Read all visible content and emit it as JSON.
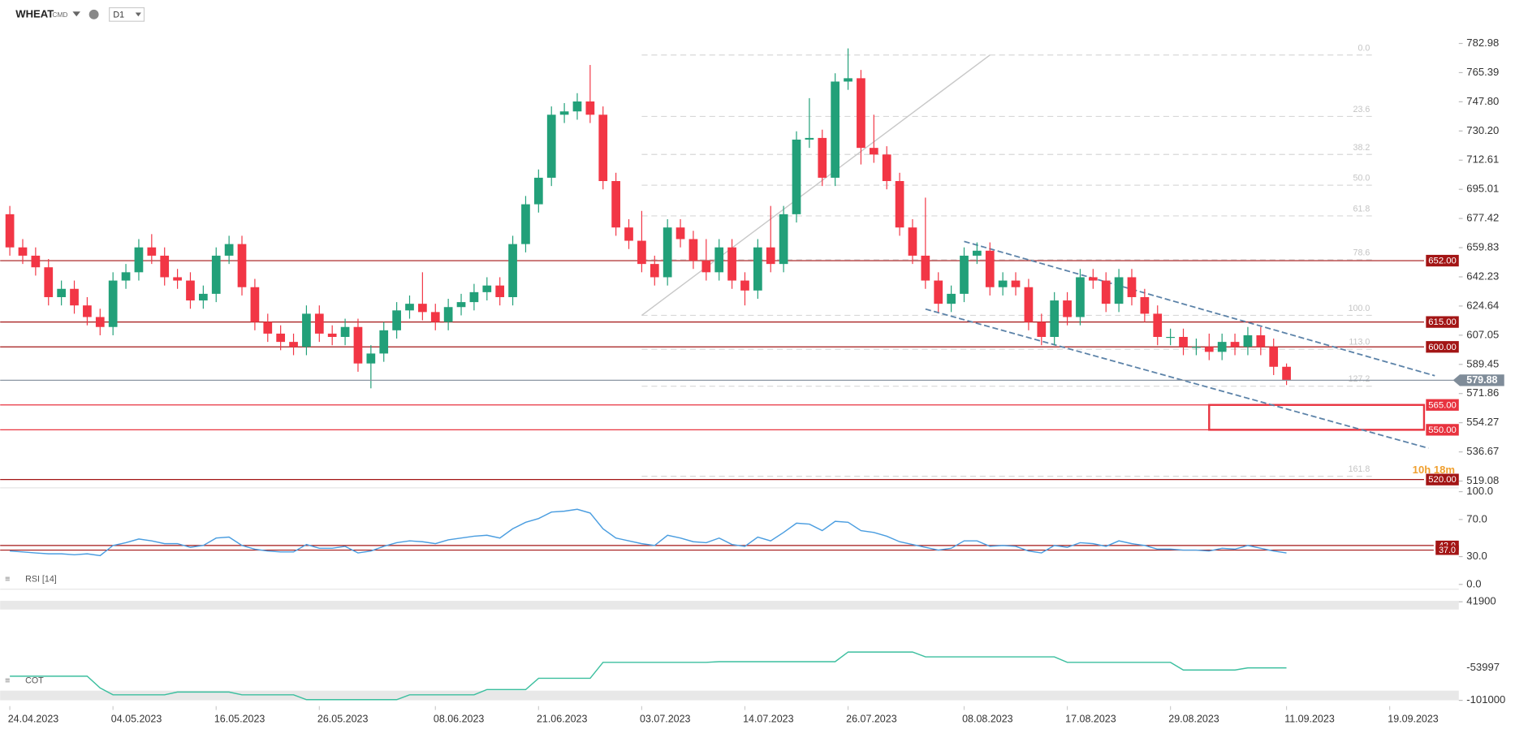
{
  "chart_data": {
    "type": "candlestick",
    "symbol": "WHEAT",
    "symbol_type": "CMD",
    "timeframe": "D1",
    "countdown": "10h 18m",
    "up_color": "#22a079",
    "down_color": "#f23645",
    "xticks": [
      {
        "value": 0,
        "label": "24.04.2023"
      },
      {
        "value": 8,
        "label": "04.05.2023"
      },
      {
        "value": 16,
        "label": "16.05.2023"
      },
      {
        "value": 24,
        "label": "26.05.2023"
      },
      {
        "value": 33,
        "label": "08.06.2023"
      },
      {
        "value": 41,
        "label": "21.06.2023"
      },
      {
        "value": 49,
        "label": "03.07.2023"
      },
      {
        "value": 57,
        "label": "14.07.2023"
      },
      {
        "value": 65,
        "label": "26.07.2023"
      },
      {
        "value": 74,
        "label": "08.08.2023"
      },
      {
        "value": 82,
        "label": "17.08.2023"
      },
      {
        "value": 90,
        "label": "29.08.2023"
      },
      {
        "value": 99,
        "label": "11.09.2023"
      },
      {
        "value": 107,
        "label": "19.09.2023"
      }
    ],
    "open": [
      680,
      660,
      655,
      648,
      630,
      635,
      625,
      618,
      612,
      640,
      645,
      660,
      655,
      642,
      640,
      628,
      632,
      655,
      662,
      636,
      615,
      608,
      603,
      600,
      620,
      608,
      606,
      612,
      590,
      596,
      610,
      622,
      626,
      621,
      615,
      624,
      627,
      633,
      637,
      630,
      662,
      686,
      702,
      740,
      742,
      748,
      740,
      700,
      672,
      664,
      650,
      642,
      672,
      665,
      652,
      645,
      660,
      640,
      634,
      660,
      650,
      680,
      725,
      726,
      702,
      760,
      762,
      720,
      716,
      700,
      672,
      655,
      640,
      626,
      632,
      655,
      658,
      636,
      640,
      636,
      615,
      606,
      628,
      618,
      642,
      640,
      626,
      642,
      630,
      620,
      606,
      606,
      600,
      600,
      597,
      603,
      600,
      607,
      600,
      588
    ],
    "high": [
      685,
      665,
      660,
      653,
      640,
      640,
      630,
      623,
      645,
      650,
      665,
      668,
      660,
      647,
      645,
      637,
      660,
      667,
      667,
      641,
      620,
      613,
      608,
      625,
      625,
      613,
      617,
      617,
      601,
      615,
      627,
      631,
      645,
      626,
      629,
      632,
      638,
      642,
      642,
      667,
      691,
      707,
      745,
      747,
      753,
      770,
      745,
      705,
      677,
      682,
      655,
      677,
      677,
      670,
      665,
      665,
      665,
      645,
      665,
      685,
      685,
      730,
      750,
      731,
      765,
      780,
      767,
      740,
      721,
      705,
      677,
      690,
      645,
      637,
      660,
      663,
      663,
      645,
      645,
      641,
      620,
      633,
      633,
      647,
      647,
      645,
      647,
      647,
      635,
      625,
      611,
      611,
      605,
      608,
      608,
      608,
      612,
      612,
      605,
      590
    ],
    "low": [
      655,
      650,
      643,
      625,
      625,
      620,
      613,
      607,
      607,
      635,
      640,
      650,
      637,
      635,
      623,
      623,
      627,
      650,
      631,
      610,
      603,
      598,
      595,
      595,
      603,
      601,
      601,
      585,
      575,
      591,
      605,
      617,
      616,
      610,
      610,
      619,
      622,
      628,
      625,
      625,
      657,
      681,
      697,
      735,
      737,
      735,
      695,
      667,
      659,
      645,
      637,
      637,
      660,
      647,
      640,
      640,
      635,
      625,
      629,
      645,
      645,
      675,
      720,
      697,
      697,
      755,
      710,
      711,
      695,
      667,
      650,
      635,
      621,
      621,
      627,
      650,
      631,
      631,
      631,
      610,
      601,
      601,
      613,
      613,
      635,
      621,
      621,
      625,
      615,
      601,
      601,
      595,
      595,
      592,
      592,
      595,
      595,
      595,
      583,
      577
    ],
    "close": [
      660,
      655,
      648,
      630,
      635,
      625,
      618,
      612,
      640,
      645,
      660,
      655,
      642,
      640,
      628,
      632,
      655,
      662,
      636,
      615,
      608,
      603,
      600,
      620,
      608,
      606,
      612,
      590,
      596,
      610,
      622,
      626,
      621,
      615,
      624,
      627,
      633,
      637,
      630,
      662,
      686,
      702,
      740,
      742,
      748,
      740,
      700,
      672,
      664,
      650,
      642,
      672,
      665,
      652,
      645,
      660,
      640,
      634,
      660,
      650,
      680,
      725,
      726,
      702,
      760,
      762,
      720,
      716,
      700,
      672,
      655,
      640,
      626,
      632,
      655,
      658,
      636,
      640,
      636,
      615,
      606,
      628,
      618,
      642,
      640,
      626,
      642,
      630,
      620,
      606,
      606,
      600,
      600,
      597,
      603,
      600,
      607,
      600,
      588,
      579.88
    ],
    "ylim": [
      516,
      792
    ],
    "yticks": [
      782.98,
      765.39,
      {
        "value": 747.8,
        "label": "747.80"
      },
      {
        "value": 730.2,
        "label": "730.20"
      },
      712.61,
      695.01,
      677.42,
      659.83,
      642.23,
      624.64,
      607.05,
      589.45,
      571.86,
      554.27,
      536.67,
      519.08
    ],
    "levels": [
      {
        "value": 652,
        "label": "652.00",
        "color": "#a31515"
      },
      {
        "value": 615,
        "label": "615.00",
        "color": "#a31515"
      },
      {
        "value": 600,
        "label": "600.00",
        "color": "#a31515"
      },
      {
        "value": 565,
        "label": "565.00",
        "color": "#e8333f"
      },
      {
        "value": 550,
        "label": "550.00",
        "color": "#e8333f"
      },
      {
        "value": 520,
        "label": "520.00",
        "color": "#a31515"
      }
    ],
    "zone": {
      "from": 550,
      "to": 565,
      "start": 93,
      "color": "#e8333f"
    },
    "fib": {
      "high": 776,
      "low": 619,
      "start": 49,
      "levels": [
        {
          "value": 0,
          "label": "0.0"
        },
        {
          "value": 23.6,
          "label": "23.6"
        },
        {
          "value": 38.2,
          "label": "38.2"
        },
        {
          "value": 50,
          "label": "50.0"
        },
        {
          "value": 61.8,
          "label": "61.8"
        },
        {
          "value": 78.6,
          "label": "78.6"
        },
        {
          "value": 100,
          "label": "100.0"
        },
        {
          "value": 113,
          "label": "113.0"
        },
        {
          "value": 127.2,
          "label": "127.2"
        },
        {
          "value": 161.8,
          "label": "161.8"
        }
      ]
    },
    "trendlines": [
      {
        "from": [
          49,
          619
        ],
        "to": [
          76,
          776
        ],
        "color": "#c8c8c8",
        "dashed": false
      },
      {
        "from": [
          74,
          663.6
        ],
        "to": [
          110.5,
          582.6
        ],
        "color": "#5b82a8",
        "dashed": true
      },
      {
        "from": [
          71,
          622.8
        ],
        "to": [
          110,
          538.9
        ],
        "color": "#5b82a8",
        "dashed": true
      }
    ],
    "panels": [
      {
        "type": "line",
        "name": "RSI [14]",
        "color": "#4a9de0",
        "values": [
          36,
          35,
          34,
          33,
          33,
          32,
          33,
          31,
          42,
          45,
          49,
          47,
          44,
          44,
          40,
          42,
          50,
          51,
          42,
          38,
          36,
          35,
          35,
          43,
          39,
          39,
          41,
          34,
          36,
          41,
          45,
          47,
          46,
          44,
          48,
          50,
          52,
          53,
          50,
          60,
          67,
          71,
          78,
          79,
          81,
          77,
          60,
          50,
          47,
          44,
          42,
          53,
          50,
          46,
          45,
          50,
          43,
          41,
          51,
          47,
          56,
          66,
          65,
          58,
          68,
          67,
          58,
          56,
          52,
          46,
          43,
          40,
          37,
          39,
          47,
          47,
          41,
          42,
          41,
          36,
          34,
          42,
          40,
          45,
          44,
          41,
          47,
          44,
          42,
          38,
          38,
          37,
          37,
          36,
          39,
          38,
          42,
          39,
          36,
          34
        ],
        "ylim": [
          0,
          100
        ],
        "yticks": [
          {
            "value": 100,
            "label": "100.0"
          },
          {
            "value": 70,
            "label": "70.0"
          },
          {
            "value": 30,
            "label": "30.0"
          },
          {
            "value": 0,
            "label": "0.0"
          }
        ],
        "levels": [
          {
            "value": 42,
            "label": "42.0",
            "color": "#a31515"
          },
          {
            "value": 37,
            "label": "37.0",
            "color": "#a31515"
          }
        ]
      },
      {
        "type": "line",
        "name": "COT",
        "color": "#3cbf9f",
        "values": [
          -66000,
          -66000,
          -66000,
          -66000,
          -66000,
          -66000,
          -66000,
          -83000,
          -93000,
          -93000,
          -93000,
          -93000,
          -93000,
          -89000,
          -89000,
          -89000,
          -89000,
          -89000,
          -93000,
          -93000,
          -93000,
          -93000,
          -93000,
          -100000,
          -100000,
          -100000,
          -100000,
          -100000,
          -100000,
          -100000,
          -100000,
          -93000,
          -93000,
          -93000,
          -93000,
          -93000,
          -93000,
          -85500,
          -85500,
          -85500,
          -85500,
          -69000,
          -69000,
          -69000,
          -69000,
          -69000,
          -46000,
          -46000,
          -46000,
          -46000,
          -46000,
          -46000,
          -46000,
          -46000,
          -46000,
          -45000,
          -45000,
          -45000,
          -45000,
          -45000,
          -45000,
          -45000,
          -45000,
          -45000,
          -45000,
          -31000,
          -31000,
          -31000,
          -31000,
          -31000,
          -31000,
          -38000,
          -38000,
          -38000,
          -38000,
          -38000,
          -38000,
          -38000,
          -38000,
          -38000,
          -38000,
          -38000,
          -46000,
          -46000,
          -46000,
          -46000,
          -46000,
          -46000,
          -46000,
          -46000,
          -46000,
          -57000,
          -57000,
          -57000,
          -57000,
          -57000,
          -53997,
          -53997,
          -53997,
          -53997
        ],
        "ylim": [
          -101000,
          41900
        ],
        "yticks": [
          41900,
          -101000
        ]
      }
    ]
  }
}
